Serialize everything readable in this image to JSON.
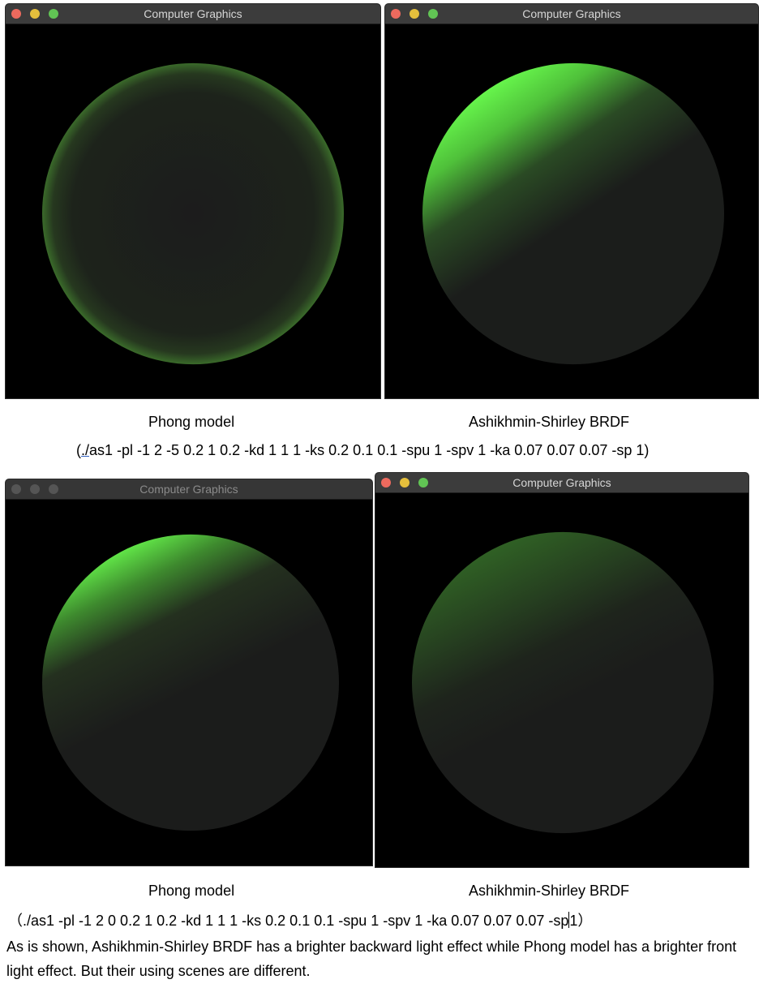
{
  "windows": [
    {
      "title": "Computer Graphics",
      "active": true
    },
    {
      "title": "Computer Graphics",
      "active": true
    },
    {
      "title": "Computer Graphics",
      "active": false
    },
    {
      "title": "Computer Graphics",
      "active": true
    }
  ],
  "colors": {
    "close": "#ed6a5e",
    "minimize": "#e5bf3c",
    "maximize": "#61c454",
    "sphere_green": "#6bff4f",
    "sphere_dark": "#1a1a1a"
  },
  "captions": {
    "top_left": "Phong model",
    "top_right": "Ashikhmin-Shirley BRDF",
    "bottom_left": "Phong model",
    "bottom_right": "Ashikhmin-Shirley BRDF"
  },
  "commands": {
    "top_open": "(",
    "top_link": "./",
    "top_rest": "as1 -pl -1 2 -5 0.2 1 0.2 -kd 1 1 1 -ks 0.2 0.1 0.1 -spu 1 -spv 1 -ka 0.07 0.07 0.07 -sp 1)",
    "bottom_before_cursor": "（./as1 -pl -1 2 0 0.2 1 0.2 -kd 1 1 1 -ks 0.2 0.1 0.1 -spu 1 -spv 1 -ka 0.07 0.07 0.07 -sp",
    "bottom_after_cursor": "1）"
  },
  "note": "As is shown, Ashikhmin-Shirley BRDF has a brighter backward light effect while Phong model has a brighter front light effect. But their using scenes are different."
}
